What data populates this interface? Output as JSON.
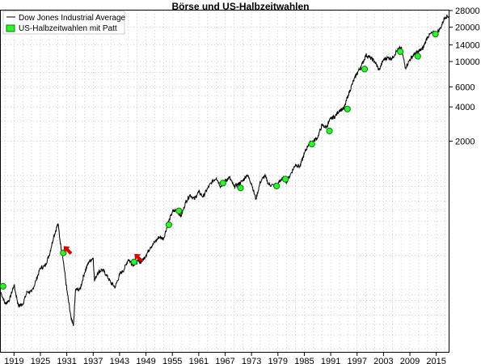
{
  "chart_data": {
    "type": "line",
    "title": "Börse und US-Halbzeitwahlen",
    "xlabel": "",
    "ylabel": "",
    "y_scale": "log",
    "xlim": [
      1916,
      2018
    ],
    "ylim": [
      28,
      28000
    ],
    "grid": true,
    "legend_position": "top-left",
    "colors": {
      "line": "#000000",
      "marker": "#33ee33",
      "marker_edge": "#008800",
      "arrow": "#dd0000",
      "grid": "#bbbbbb"
    },
    "x_ticks": [
      {
        "value": 1919,
        "label": "1919"
      },
      {
        "value": 1925,
        "label": "1925"
      },
      {
        "value": 1931,
        "label": "1931"
      },
      {
        "value": 1937,
        "label": "1937"
      },
      {
        "value": 1943,
        "label": "1943"
      },
      {
        "value": 1949,
        "label": "1949"
      },
      {
        "value": 1955,
        "label": "1955"
      },
      {
        "value": 1961,
        "label": "1961"
      },
      {
        "value": 1967,
        "label": "1967"
      },
      {
        "value": 1973,
        "label": "1973"
      },
      {
        "value": 1979,
        "label": "1979"
      },
      {
        "value": 1985,
        "label": "1985"
      },
      {
        "value": 1991,
        "label": "1991"
      },
      {
        "value": 1997,
        "label": "1997"
      },
      {
        "value": 2003,
        "label": "2003"
      },
      {
        "value": 2009,
        "label": "2009"
      },
      {
        "value": 2015,
        "label": "2015"
      }
    ],
    "y_ticks": [
      {
        "value": 2000,
        "label": "2000"
      },
      {
        "value": 4000,
        "label": "4000"
      },
      {
        "value": 6000,
        "label": "6000"
      },
      {
        "value": 10000,
        "label": "10000"
      },
      {
        "value": 14000,
        "label": "14000"
      },
      {
        "value": 20000,
        "label": "20000"
      },
      {
        "value": 28000,
        "label": "28000"
      }
    ],
    "series": [
      {
        "name": "Dow Jones Industrial Average",
        "x": [
          1916,
          1917,
          1918,
          1919,
          1920,
          1921,
          1922,
          1923,
          1924,
          1925,
          1926,
          1927,
          1928,
          1929,
          1929.7,
          1930,
          1931,
          1932,
          1932.5,
          1933,
          1934,
          1935,
          1936,
          1937,
          1937.3,
          1938,
          1939,
          1940,
          1941,
          1942,
          1943,
          1944,
          1945,
          1946,
          1947,
          1948,
          1949,
          1950,
          1951,
          1952,
          1953,
          1954,
          1955,
          1956,
          1957,
          1958,
          1959,
          1960,
          1961,
          1962,
          1963,
          1964,
          1965,
          1966,
          1967,
          1968,
          1969,
          1970,
          1971,
          1972,
          1973,
          1974,
          1975,
          1976,
          1977,
          1978,
          1979,
          1980,
          1981,
          1982,
          1983,
          1984,
          1985,
          1986,
          1987,
          1988,
          1989,
          1990,
          1991,
          1992,
          1993,
          1994,
          1995,
          1996,
          1997,
          1998,
          1999,
          2000,
          2001,
          2002,
          2003,
          2004,
          2005,
          2006,
          2007,
          2008,
          2009,
          2010,
          2011,
          2012,
          2013,
          2014,
          2015,
          2016,
          2017,
          2018
        ],
        "values": [
          95,
          75,
          82,
          110,
          72,
          75,
          96,
          95,
          120,
          155,
          160,
          200,
          290,
          380,
          230,
          210,
          100,
          55,
          48,
          100,
          100,
          140,
          175,
          190,
          120,
          140,
          150,
          135,
          115,
          105,
          135,
          150,
          185,
          165,
          175,
          175,
          200,
          235,
          260,
          290,
          280,
          380,
          480,
          500,
          440,
          580,
          680,
          620,
          720,
          650,
          770,
          880,
          960,
          800,
          900,
          960,
          800,
          840,
          900,
          1020,
          850,
          620,
          880,
          1000,
          830,
          820,
          840,
          960,
          880,
          1050,
          1250,
          1200,
          1550,
          1900,
          2000,
          2150,
          2750,
          2650,
          3150,
          3300,
          3750,
          3850,
          5100,
          6500,
          7900,
          9200,
          11400,
          10800,
          10000,
          8400,
          10400,
          10800,
          10700,
          12400,
          13300,
          8800,
          10400,
          11600,
          12200,
          13100,
          16500,
          17800,
          17400,
          19800,
          24700,
          25000
        ]
      },
      {
        "name": "US-Halbzeitwahlen mit Patt",
        "x": [
          1916.5,
          1930.2,
          1946.3,
          1954.2,
          1956.5,
          1966.5,
          1970.5,
          1978.7,
          1980.7,
          1986.7,
          1990.7,
          1994.8,
          1998.7,
          2006.8,
          2010.8,
          2014.8
        ],
        "values": [
          107,
          210,
          175,
          370,
          490,
          860,
          780,
          810,
          930,
          1890,
          2460,
          3830,
          8590,
          12210,
          11120,
          17400
        ]
      }
    ],
    "annotations": [
      {
        "type": "arrow",
        "x": 1931.2,
        "y": 222,
        "direction": "down-left"
      },
      {
        "type": "arrow",
        "x": 1947.3,
        "y": 190,
        "direction": "down-left"
      }
    ]
  }
}
